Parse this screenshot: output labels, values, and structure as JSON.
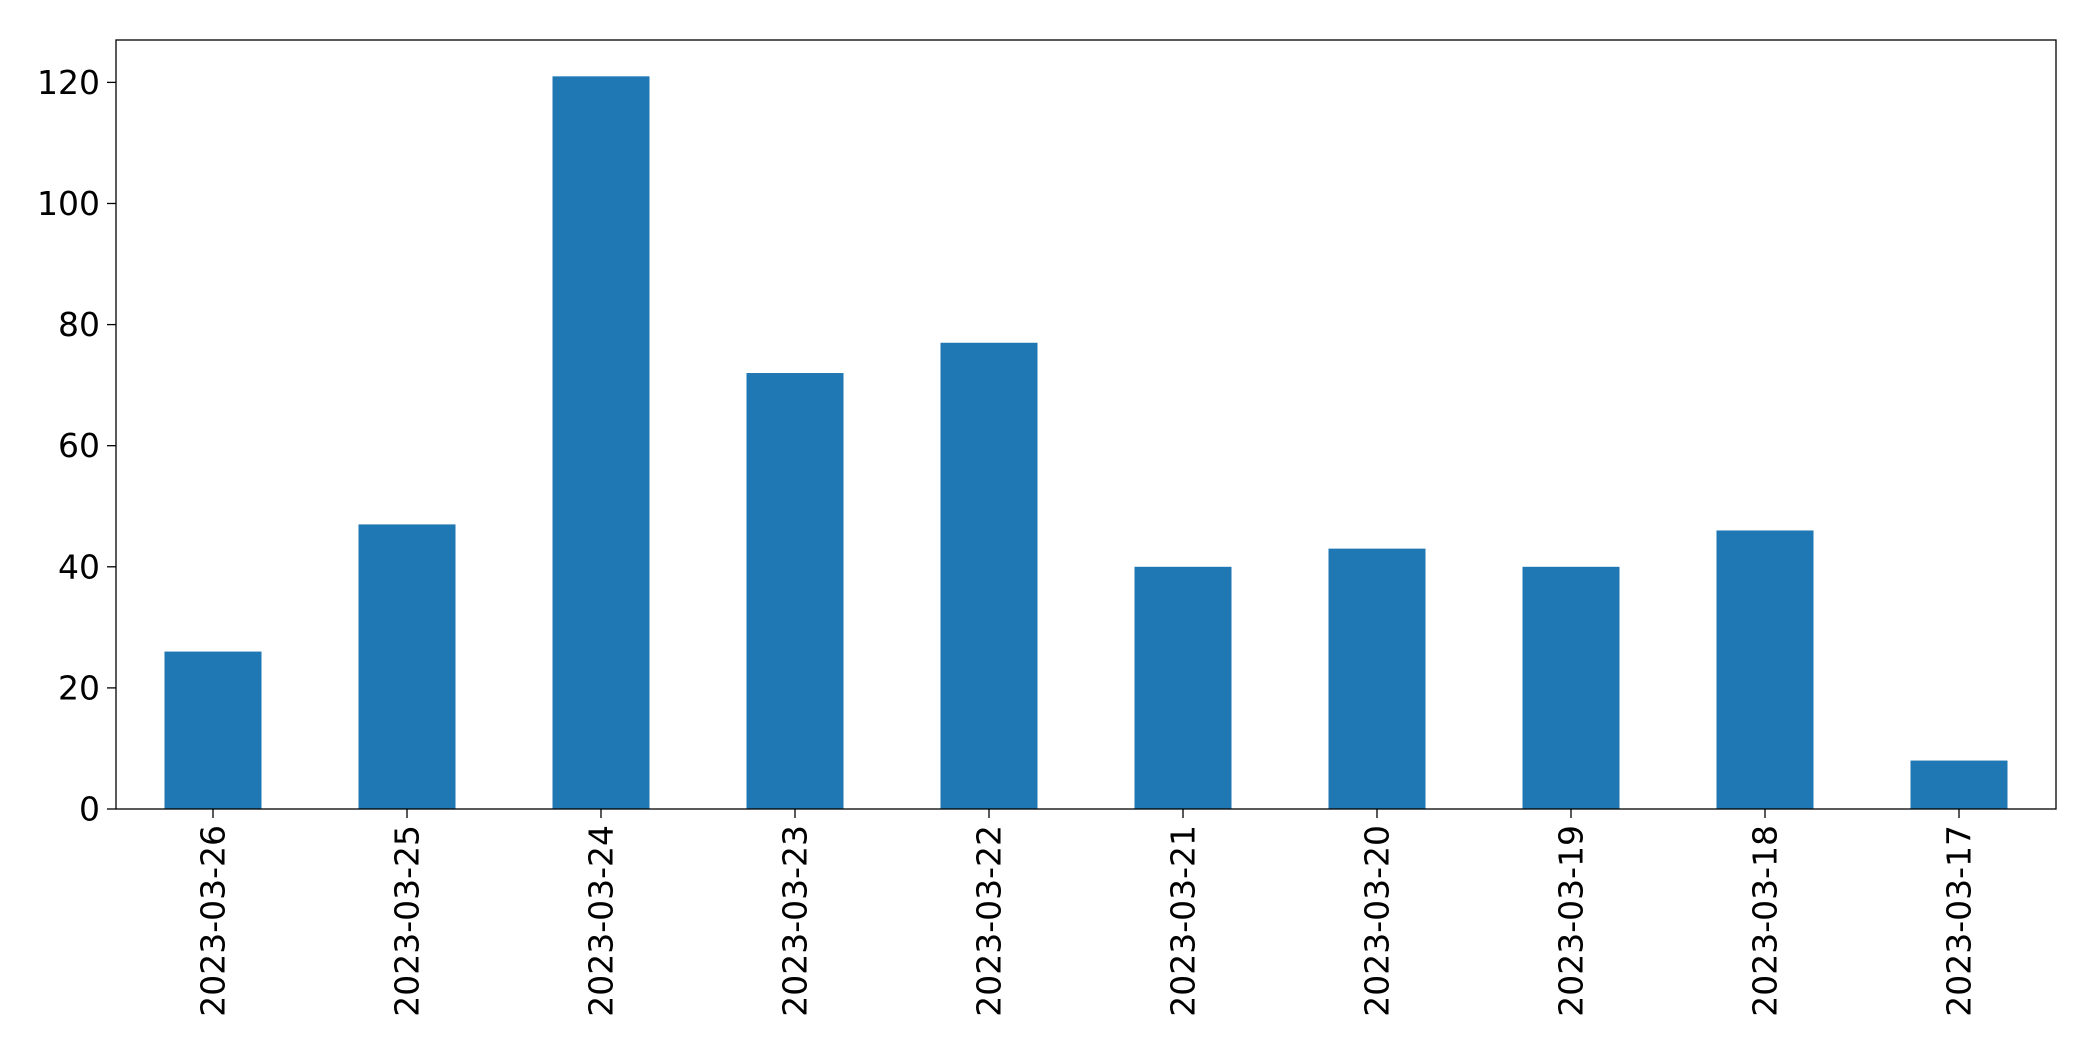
{
  "chart_data": {
    "type": "bar",
    "categories": [
      "2023-03-26",
      "2023-03-25",
      "2023-03-24",
      "2023-03-23",
      "2023-03-22",
      "2023-03-21",
      "2023-03-20",
      "2023-03-19",
      "2023-03-18",
      "2023-03-17"
    ],
    "values": [
      26,
      47,
      121,
      72,
      77,
      40,
      43,
      40,
      46,
      8
    ],
    "ylim": [
      0,
      127
    ],
    "yticks": [
      0,
      20,
      40,
      60,
      80,
      100,
      120
    ],
    "ytick_labels": [
      "0",
      "20",
      "40",
      "60",
      "80",
      "100",
      "120"
    ],
    "grid": false,
    "bar_color": "#1f77b4",
    "title": "",
    "xlabel": "",
    "ylabel": ""
  }
}
